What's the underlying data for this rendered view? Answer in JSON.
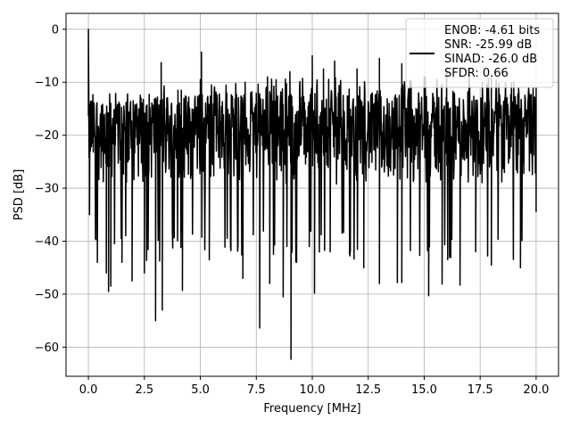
{
  "chart_data": {
    "type": "line",
    "xlabel": "Frequency [MHz]",
    "ylabel": "PSD [dB]",
    "xlim": [
      -1.0,
      21.0
    ],
    "ylim": [
      -65.5,
      3.0
    ],
    "xticks": [
      0.0,
      2.5,
      5.0,
      7.5,
      10.0,
      12.5,
      15.0,
      17.5,
      20.0
    ],
    "xtick_labels": [
      "0.0",
      "2.5",
      "5.0",
      "7.5",
      "10.0",
      "12.5",
      "15.0",
      "17.5",
      "20.0"
    ],
    "yticks": [
      0,
      -10,
      -20,
      -30,
      -40,
      -50,
      -60
    ],
    "ytick_labels": [
      "0",
      "−10",
      "−20",
      "−30",
      "−40",
      "−50",
      "−60"
    ],
    "grid": true,
    "legend": {
      "placement": "top-right",
      "lines": [
        "ENOB: -4.61 bits",
        "SNR: -25.99 dB",
        "SINAD: -26.0 dB",
        "SFDR: 0.66"
      ]
    },
    "series": [
      {
        "color": "#000000",
        "x_start": 0.0,
        "x_end": 20.0,
        "typical_range_db": [
          -35,
          -12
        ],
        "upper_envelope_db": [
          [
            0.0,
            0.0
          ],
          [
            0.1,
            -14
          ],
          [
            1.0,
            -14
          ],
          [
            2.0,
            -13.5
          ],
          [
            3.0,
            -13
          ],
          [
            3.25,
            -6.3
          ],
          [
            3.5,
            -13
          ],
          [
            4.0,
            -11.5
          ],
          [
            5.0,
            -9.5
          ],
          [
            5.05,
            -4.3
          ],
          [
            5.5,
            -10.5
          ],
          [
            7.0,
            -10
          ],
          [
            8.0,
            -9
          ],
          [
            9.0,
            -8
          ],
          [
            10.0,
            -5
          ],
          [
            10.5,
            -7.5
          ],
          [
            11.0,
            -6
          ],
          [
            12.0,
            -7.5
          ],
          [
            13.0,
            -5.5
          ],
          [
            14.0,
            -6.5
          ],
          [
            15.0,
            -9
          ],
          [
            16.0,
            -8
          ],
          [
            17.0,
            -7.5
          ],
          [
            18.0,
            -9
          ],
          [
            19.0,
            -10
          ],
          [
            20.0,
            -11
          ]
        ],
        "lower_spikes_db": [
          [
            0.05,
            -35
          ],
          [
            0.4,
            -44
          ],
          [
            0.8,
            -46
          ],
          [
            0.9,
            -49.5
          ],
          [
            1.0,
            -48.5
          ],
          [
            1.5,
            -44
          ],
          [
            1.95,
            -47.5
          ],
          [
            2.5,
            -46
          ],
          [
            3.0,
            -55
          ],
          [
            3.3,
            -53
          ],
          [
            4.2,
            -49.3
          ],
          [
            5.4,
            -43.5
          ],
          [
            6.9,
            -47
          ],
          [
            7.65,
            -56.4
          ],
          [
            8.1,
            -48
          ],
          [
            8.7,
            -50.5
          ],
          [
            9.05,
            -62.3
          ],
          [
            9.3,
            -44
          ],
          [
            10.1,
            -49.8
          ],
          [
            10.8,
            -42
          ],
          [
            11.7,
            -42
          ],
          [
            12.3,
            -45
          ],
          [
            13.0,
            -48
          ],
          [
            13.8,
            -47.8
          ],
          [
            14.0,
            -47.8
          ],
          [
            15.2,
            -50.3
          ],
          [
            15.8,
            -48.1
          ],
          [
            16.6,
            -48.3
          ],
          [
            17.3,
            -42
          ],
          [
            18.0,
            -44.5
          ],
          [
            19.3,
            -45
          ],
          [
            20.0,
            -34.5
          ]
        ]
      }
    ]
  }
}
